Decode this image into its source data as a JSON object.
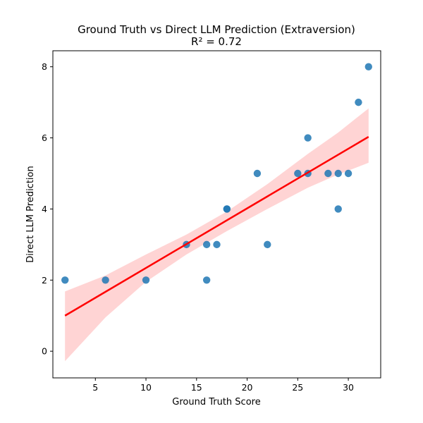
{
  "chart_data": {
    "type": "scatter",
    "title": "Ground Truth vs Direct LLM Prediction (Extraversion)",
    "subtitle": "R² = 0.72",
    "xlabel": "Ground Truth Score",
    "ylabel": "Direct LLM Prediction",
    "xlim": [
      0.8,
      33.2
    ],
    "ylim": [
      -0.75,
      8.45
    ],
    "x_ticks": [
      5,
      10,
      15,
      20,
      25,
      30
    ],
    "y_ticks": [
      0,
      2,
      4,
      6,
      8
    ],
    "grid": false,
    "points": [
      {
        "x": 2,
        "y": 2
      },
      {
        "x": 6,
        "y": 2
      },
      {
        "x": 10,
        "y": 2
      },
      {
        "x": 14,
        "y": 3
      },
      {
        "x": 16,
        "y": 3
      },
      {
        "x": 16,
        "y": 2
      },
      {
        "x": 17,
        "y": 3
      },
      {
        "x": 18,
        "y": 4
      },
      {
        "x": 18,
        "y": 4
      },
      {
        "x": 21,
        "y": 5
      },
      {
        "x": 22,
        "y": 3
      },
      {
        "x": 25,
        "y": 5
      },
      {
        "x": 26,
        "y": 6
      },
      {
        "x": 26,
        "y": 5
      },
      {
        "x": 28,
        "y": 5
      },
      {
        "x": 29,
        "y": 5
      },
      {
        "x": 29,
        "y": 4
      },
      {
        "x": 30,
        "y": 5
      },
      {
        "x": 31,
        "y": 7
      },
      {
        "x": 32,
        "y": 8
      }
    ],
    "regression": {
      "x_range": [
        2,
        32
      ],
      "y_at_start": 1.0,
      "y_at_end": 6.03,
      "ci_lower": [
        [
          2,
          -0.28
        ],
        [
          6,
          0.95
        ],
        [
          10,
          1.95
        ],
        [
          14,
          2.72
        ],
        [
          18,
          3.38
        ],
        [
          22,
          4.0
        ],
        [
          26,
          4.6
        ],
        [
          29,
          4.97
        ],
        [
          32,
          5.3
        ]
      ],
      "ci_upper": [
        [
          2,
          1.68
        ],
        [
          6,
          2.13
        ],
        [
          10,
          2.72
        ],
        [
          14,
          3.28
        ],
        [
          18,
          3.93
        ],
        [
          22,
          4.7
        ],
        [
          26,
          5.55
        ],
        [
          29,
          6.15
        ],
        [
          32,
          6.83
        ]
      ]
    },
    "colors": {
      "point": "#1f77b4",
      "line": "#ff0000",
      "band": "#ffcccc"
    }
  }
}
